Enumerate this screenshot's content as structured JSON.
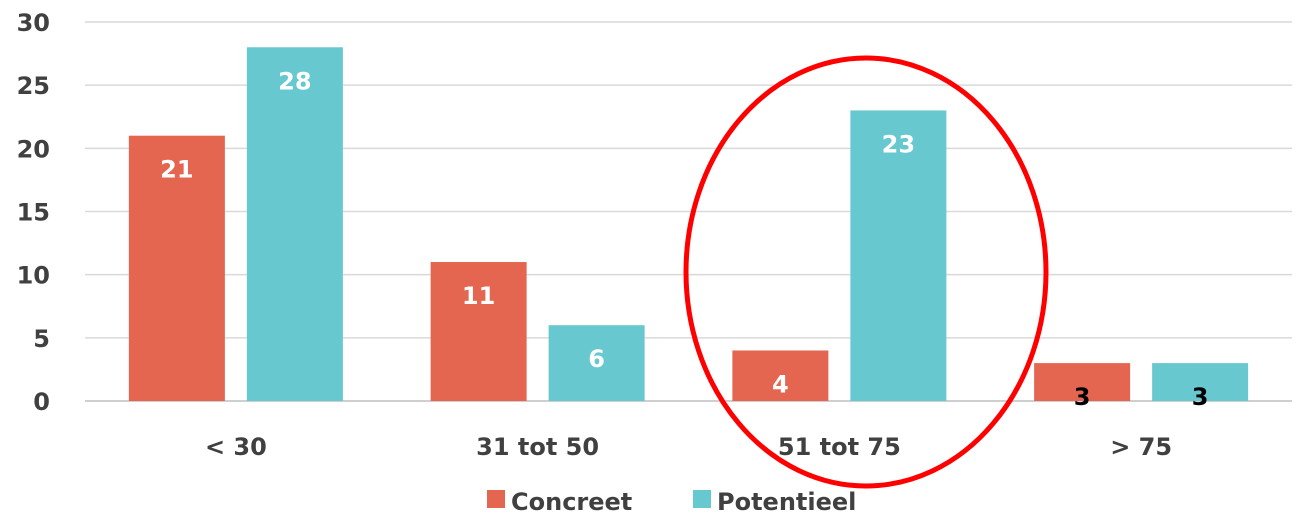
{
  "chart_data": {
    "type": "bar",
    "categories": [
      "< 30",
      "31 tot 50",
      "51 tot 75",
      "> 75"
    ],
    "series": [
      {
        "name": "Concreet",
        "values": [
          21,
          11,
          4,
          3
        ],
        "color": "#E46651"
      },
      {
        "name": "Potentieel",
        "values": [
          28,
          6,
          23,
          3
        ],
        "color": "#67C8D0"
      }
    ],
    "data_label_colors": [
      [
        "#ffffff",
        "#ffffff"
      ],
      [
        "#ffffff",
        "#ffffff"
      ],
      [
        "#ffffff",
        "#ffffff"
      ],
      [
        "#000000",
        "#000000"
      ]
    ],
    "ylim": [
      0,
      30
    ],
    "yticks": [
      "0",
      "5",
      "10",
      "15",
      "20",
      "25",
      "30"
    ],
    "grid": true,
    "legend_position": "bottom",
    "annotation": {
      "shape": "ellipse",
      "color": "#FF0000",
      "highlighted_category": "51 tot 75"
    }
  }
}
